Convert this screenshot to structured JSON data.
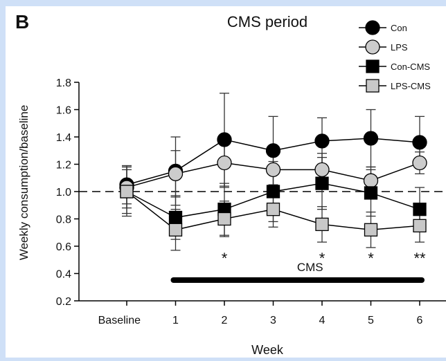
{
  "panel_label": "B",
  "chart_data": {
    "type": "line",
    "title": "CMS period",
    "xlabel": "Week",
    "ylabel": "Weekly consumption/baseline",
    "categories": [
      "Baseline",
      "1",
      "2",
      "3",
      "4",
      "5",
      "6"
    ],
    "ylim": [
      0.2,
      1.8
    ],
    "yticks": [
      0.2,
      0.4,
      0.6,
      0.8,
      1.0,
      1.2,
      1.4,
      1.6,
      1.8
    ],
    "reference_line": 1.0,
    "grid": false,
    "legend_position": "top-right",
    "series": [
      {
        "name": "Con",
        "marker": "circle",
        "fill": "#000000",
        "values": [
          1.05,
          1.15,
          1.38,
          1.3,
          1.37,
          1.39,
          1.36
        ],
        "errors": [
          0.14,
          0.25,
          0.34,
          0.25,
          0.17,
          0.21,
          0.19
        ]
      },
      {
        "name": "LPS",
        "marker": "circle",
        "fill": "#cccccc",
        "values": [
          1.03,
          1.13,
          1.21,
          1.16,
          1.16,
          1.08,
          1.21
        ],
        "errors": [
          0.15,
          0.17,
          0.18,
          0.14,
          0.12,
          0.1,
          0.08
        ]
      },
      {
        "name": "Con-CMS",
        "marker": "square",
        "fill": "#000000",
        "values": [
          1.0,
          0.81,
          0.87,
          1.0,
          1.06,
          0.99,
          0.87
        ],
        "errors": [
          0.16,
          0.16,
          0.19,
          0.22,
          0.19,
          0.17,
          0.16
        ]
      },
      {
        "name": "LPS-CMS",
        "marker": "square",
        "fill": "#c8c8c8",
        "values": [
          1.0,
          0.72,
          0.8,
          0.87,
          0.76,
          0.72,
          0.75
        ],
        "errors": [
          0.18,
          0.15,
          0.13,
          0.13,
          0.13,
          0.13,
          0.12
        ]
      }
    ],
    "annotations": [
      {
        "category": "2",
        "text": "*"
      },
      {
        "category": "4",
        "text": "*"
      },
      {
        "category": "5",
        "text": "*"
      },
      {
        "category": "6",
        "text": "**"
      }
    ],
    "period_bar": {
      "label": "CMS",
      "from": "1",
      "to": "6"
    }
  }
}
